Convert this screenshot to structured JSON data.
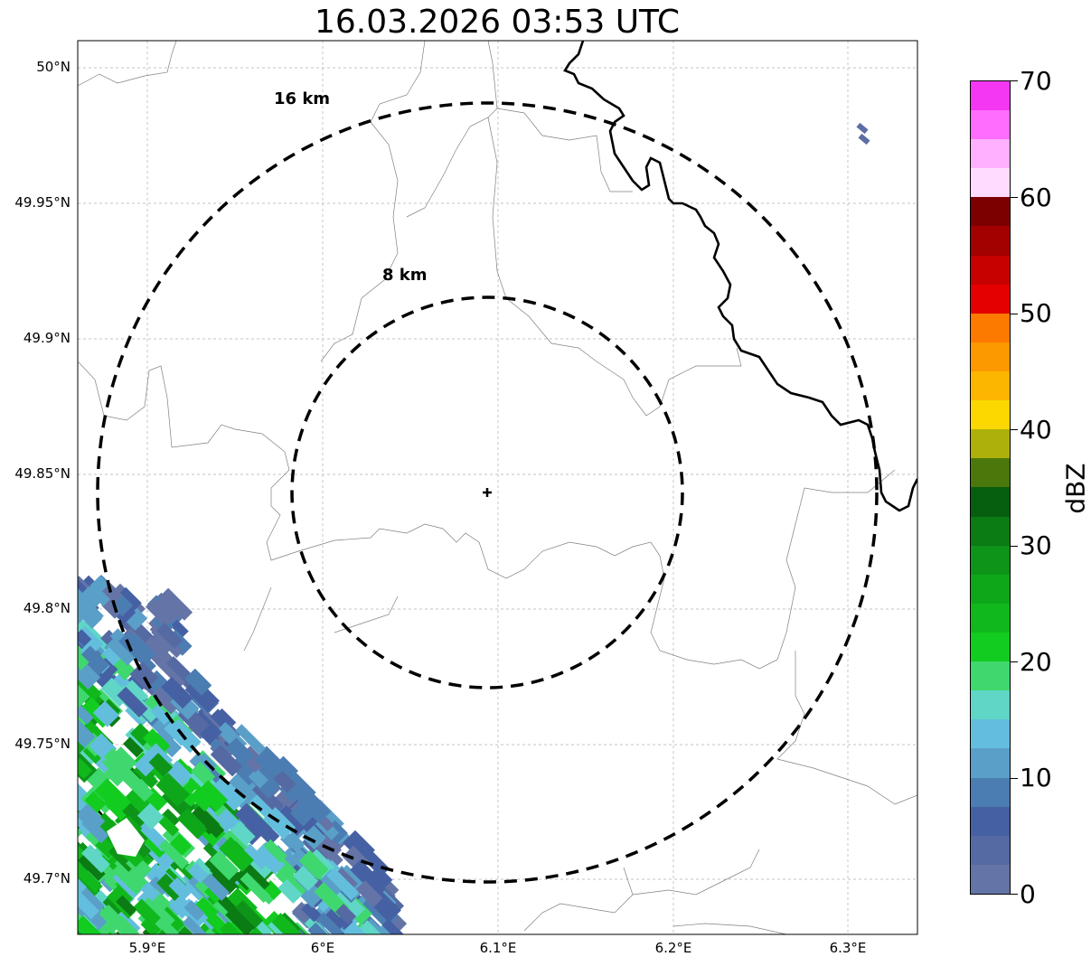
{
  "title": "16.03.2026 03:53 UTC",
  "map": {
    "lat_ticks": [
      "50°N",
      "49.95°N",
      "49.9°N",
      "49.85°N",
      "49.8°N",
      "49.75°N",
      "49.7°N"
    ],
    "lon_ticks": [
      "5.9°E",
      "6°E",
      "6.1°E",
      "6.2°E",
      "6.3°E"
    ],
    "range_rings": [
      {
        "label": "16 km",
        "radius_km": 16
      },
      {
        "label": "8 km",
        "radius_km": 8
      }
    ],
    "radar_site": {
      "lat": 49.843,
      "lon": 6.096
    },
    "grid": true
  },
  "colorbar": {
    "label": "dBZ",
    "ticks": [
      "0",
      "10",
      "20",
      "30",
      "40",
      "50",
      "60",
      "70"
    ],
    "colors": [
      "#6474a6",
      "#556aa2",
      "#4661a3",
      "#4c7db2",
      "#5a9fc8",
      "#63bedd",
      "#5fd6c6",
      "#3fd86e",
      "#12cc20",
      "#10b81c",
      "#0fa71a",
      "#0e9419",
      "#0b7b14",
      "#065f0f",
      "#4a780a",
      "#adb00b",
      "#fcd800",
      "#fcb600",
      "#fc9800",
      "#fd7a00",
      "#e40000",
      "#c70000",
      "#a30000",
      "#7c0000",
      "#ffdcff",
      "#ffb0ff",
      "#ff6dff",
      "#f337f3"
    ]
  }
}
